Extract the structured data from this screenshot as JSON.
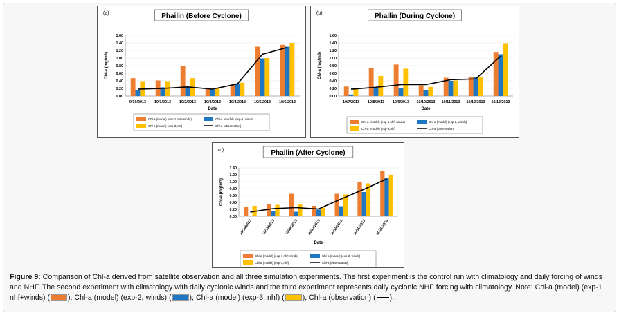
{
  "colors": {
    "exp1": "#ed7d31",
    "exp2": "#1f77c4",
    "exp3": "#ffc000",
    "obs": "#000000"
  },
  "chart_data": [
    {
      "type": "bar",
      "panel_label": "(a)",
      "title": "Phailin (Before Cyclone)",
      "xlabel": "Date",
      "ylabel": "Chl-a (mg/m3)",
      "ylim": [
        0,
        1.6
      ],
      "yticks": [
        "0.00",
        "0.20",
        "0.40",
        "0.60",
        "0.80",
        "1.00",
        "1.20",
        "1.40",
        "1.60"
      ],
      "categories": [
        "9/30/2013",
        "10/1/2013",
        "10/2/2013",
        "10/3/2013",
        "10/4/2013",
        "10/5/2013",
        "10/6/2013"
      ],
      "series": [
        {
          "name": "Chl-a (model) (exp-1 nhf+winds)",
          "kind": "bar",
          "color": "#ed7d31",
          "values": [
            0.47,
            0.41,
            0.8,
            0.22,
            0.31,
            1.3,
            1.35
          ]
        },
        {
          "name": "Chl-a (model) (exp-2, winds)",
          "kind": "bar",
          "color": "#1f77c4",
          "values": [
            0.16,
            0.23,
            0.23,
            0.17,
            0.33,
            0.99,
            1.3
          ]
        },
        {
          "name": "Chl-a (model) (exp-3,nhf)",
          "kind": "bar",
          "color": "#ffc000",
          "values": [
            0.39,
            0.39,
            0.47,
            0.2,
            0.35,
            1.0,
            1.4
          ]
        },
        {
          "name": "Chl-a (observation)",
          "kind": "line",
          "color": "#000000",
          "values": [
            0.18,
            0.2,
            0.24,
            0.18,
            0.32,
            1.1,
            1.28
          ]
        }
      ]
    },
    {
      "type": "bar",
      "panel_label": "(b)",
      "title": "Phailin (During Cyclone)",
      "xlabel": "Date",
      "ylabel": "Chl-a (mg/m3)",
      "ylim": [
        0,
        1.6
      ],
      "yticks": [
        "0.00",
        "0.20",
        "0.40",
        "0.60",
        "0.80",
        "1.00",
        "1.20",
        "1.40",
        "1.60"
      ],
      "categories": [
        "10/7/2013",
        "10/8/2013",
        "10/9/2013",
        "10/10/2013",
        "10/11/2013",
        "10/12/2013",
        "10/13/2013"
      ],
      "series": [
        {
          "name": "Chl-a (model) (exp-1 nhf+winds)",
          "kind": "bar",
          "color": "#ed7d31",
          "values": [
            0.25,
            0.73,
            0.83,
            0.28,
            0.48,
            0.51,
            1.16
          ]
        },
        {
          "name": "Chl-a (model) (exp-2, winds)",
          "kind": "bar",
          "color": "#1f77c4",
          "values": [
            0.04,
            0.2,
            0.2,
            0.15,
            0.4,
            0.51,
            1.1
          ]
        },
        {
          "name": "Chl-a (model) (exp-3,nhf)",
          "kind": "bar",
          "color": "#ffc000",
          "values": [
            0.2,
            0.53,
            0.72,
            0.24,
            0.41,
            0.5,
            1.39
          ]
        },
        {
          "name": "Chl-a (observation)",
          "kind": "line",
          "color": "#000000",
          "values": [
            0.18,
            0.23,
            0.3,
            0.3,
            0.43,
            0.45,
            1.05
          ]
        }
      ]
    },
    {
      "type": "bar",
      "panel_label": "(c)",
      "title": "Phailin (After Cyclone)",
      "xlabel": "Date",
      "ylabel": "Chl-a (mg/m3)",
      "ylim": [
        0,
        1.4
      ],
      "yticks": [
        "0.00",
        "0.20",
        "0.40",
        "0.60",
        "0.80",
        "1.00",
        "1.20",
        "1.40"
      ],
      "categories": [
        "10/14/2013",
        "10/15/2013",
        "10/16/2013",
        "10/17/2013",
        "10/18/2013",
        "10/19/2013",
        "10/20/2013"
      ],
      "series": [
        {
          "name": "Chl-a (model) (exp-1 nhf+winds)",
          "kind": "bar",
          "color": "#ed7d31",
          "values": [
            0.27,
            0.35,
            0.65,
            0.3,
            0.65,
            0.98,
            1.3
          ]
        },
        {
          "name": "Chl-a (model) (exp-2, winds)",
          "kind": "bar",
          "color": "#1f77c4",
          "values": [
            0.02,
            0.15,
            0.13,
            0.19,
            0.29,
            0.7,
            1.1
          ]
        },
        {
          "name": "Chl-a (model) (exp-3,nhf)",
          "kind": "bar",
          "color": "#ffc000",
          "values": [
            0.3,
            0.33,
            0.35,
            0.25,
            0.63,
            0.95,
            1.18
          ]
        },
        {
          "name": "Chl-a (observation)",
          "kind": "line",
          "color": "#000000",
          "values": [
            0.12,
            0.22,
            0.25,
            0.21,
            0.5,
            0.78,
            1.08
          ]
        }
      ]
    }
  ],
  "caption": {
    "label": "Figure 9:",
    "text1": " Comparison of Chl-a derived from satellite observation and all three simulation experiments. The first experiment is the control run with climatology and daily forcing of winds and NHF. The second experiment with climatology with daily cyclonic winds and the third experiment represents daily cyclonic NHF forcing with climatology. Note: Chl-a (model) (exp-1 nhf+winds) (",
    "text2": "); Chl-a (model) (exp-2, winds) (",
    "text3": "); Chl-a (model) (exp-3, nhf) (",
    "text4": "); Chl-a (observation) (",
    "text5": ").."
  }
}
